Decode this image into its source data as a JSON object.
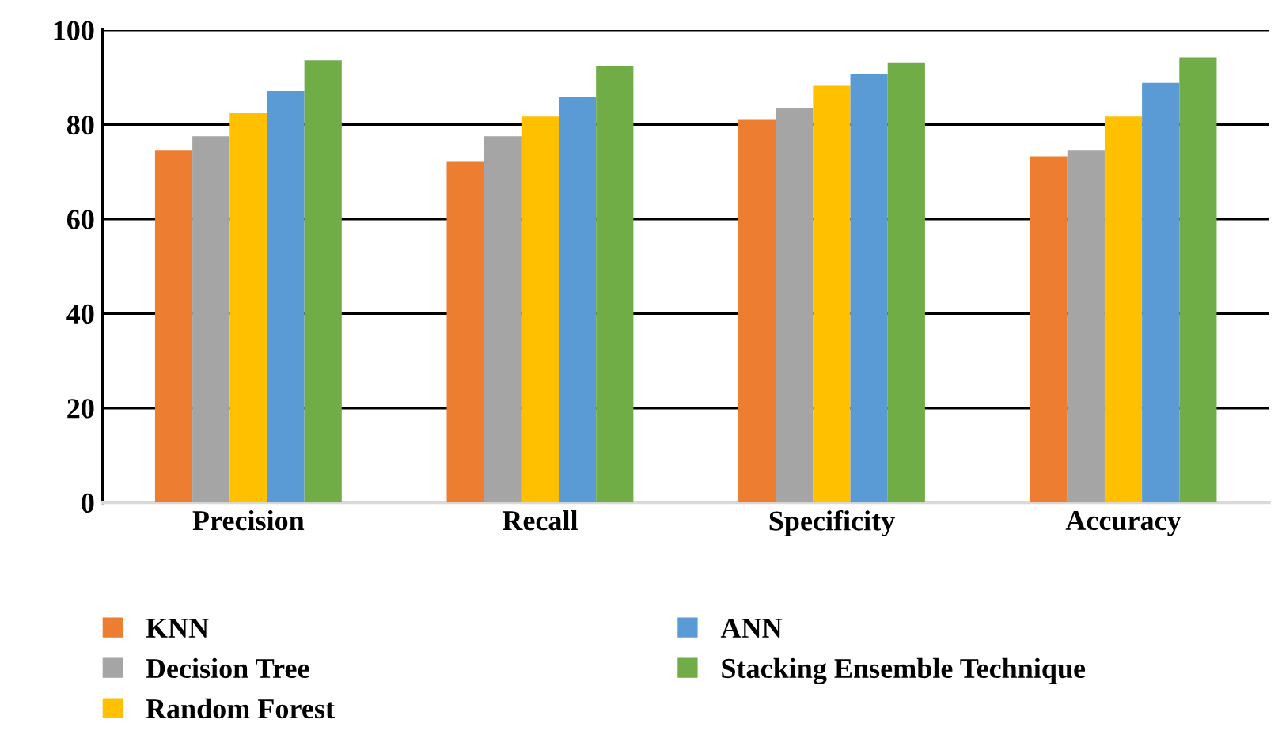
{
  "chart_data": {
    "type": "bar",
    "categories": [
      "Precision",
      "Recall",
      "Specificity",
      "Accuracy"
    ],
    "series": [
      {
        "name": "KNN",
        "color": "#ed7d31",
        "values": [
          74.5,
          72.1,
          81.0,
          73.3
        ]
      },
      {
        "name": "Decision Tree",
        "color": "#a5a5a5",
        "values": [
          77.5,
          77.5,
          83.4,
          74.5
        ]
      },
      {
        "name": "Random Forest",
        "color": "#ffc000",
        "values": [
          82.4,
          81.7,
          88.2,
          81.7
        ]
      },
      {
        "name": "ANN",
        "color": "#5b9bd5",
        "values": [
          87.1,
          85.8,
          90.6,
          88.8
        ]
      },
      {
        "name": "Stacking Ensemble Technique",
        "color": "#70ad47",
        "values": [
          93.6,
          92.4,
          93.0,
          94.2
        ]
      }
    ],
    "ylim": [
      0,
      100
    ],
    "yticks": [
      0,
      20,
      40,
      60,
      80,
      100
    ],
    "grid": "y",
    "legend": "bottom"
  }
}
